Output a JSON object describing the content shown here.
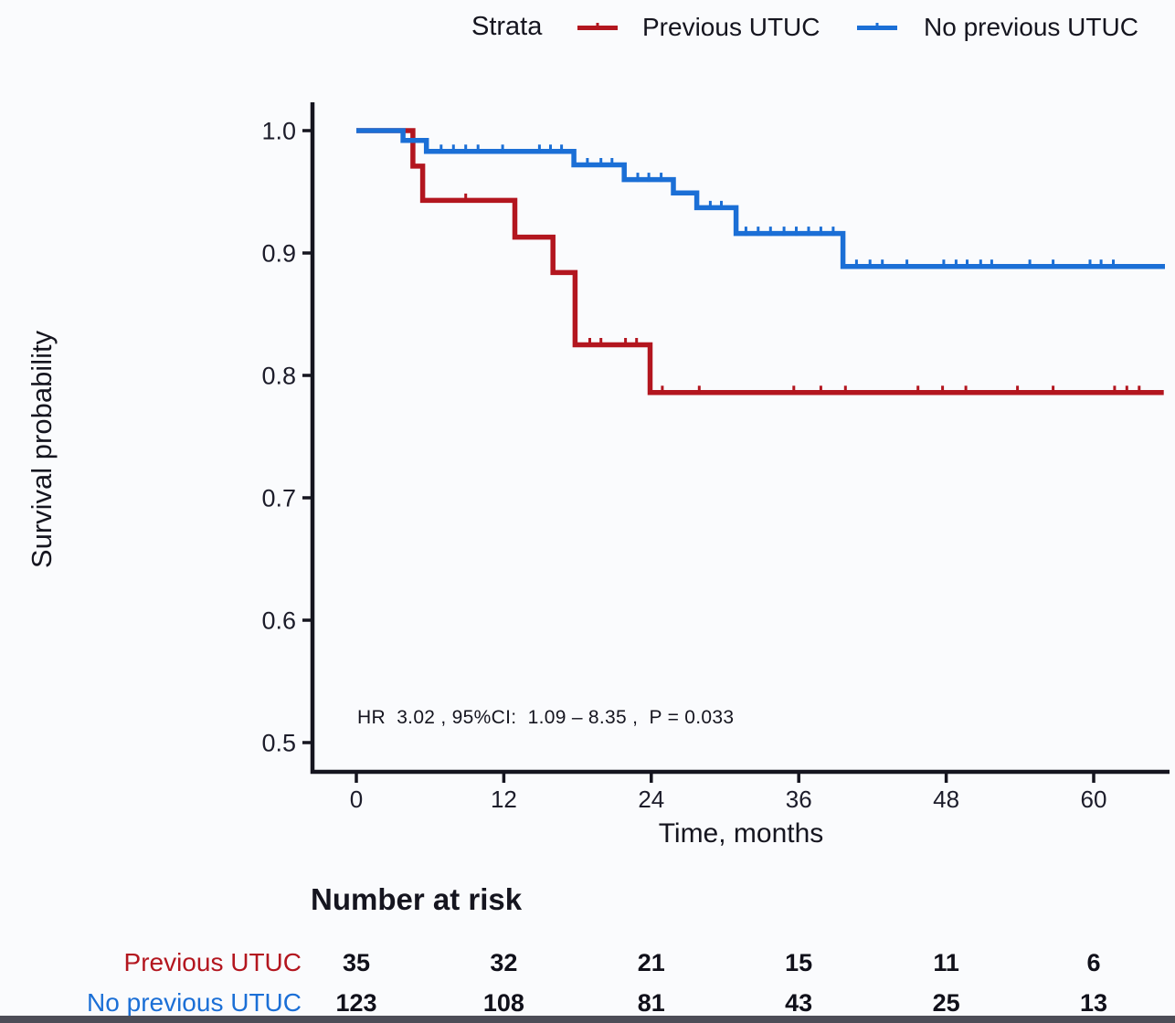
{
  "legend": {
    "title": "Strata",
    "items": [
      {
        "label": "Previous UTUC",
        "color": "#B3161F"
      },
      {
        "label": "No previous UTUC",
        "color": "#1B6FD6"
      }
    ]
  },
  "axes": {
    "y_title": "Survival probability",
    "x_title": "Time, months"
  },
  "annotation": "HR  3.02 , 95%CI:  1.09 – 8.35 ,  P = 0.033",
  "risk_table": {
    "title": "Number at risk",
    "time_points": [
      0,
      12,
      24,
      36,
      48,
      60
    ],
    "rows": [
      {
        "label": "Previous UTUC",
        "color": "#B3161F",
        "counts": [
          35,
          32,
          21,
          15,
          11,
          6
        ]
      },
      {
        "label": "No previous UTUC",
        "color": "#1B6FD6",
        "counts": [
          123,
          108,
          81,
          43,
          25,
          13
        ]
      }
    ]
  },
  "chart_data": {
    "type": "line",
    "subtype": "kaplan-meier-step-curves",
    "title": "",
    "xlabel": "Time, months",
    "ylabel": "Survival probability",
    "xlim": [
      0,
      66
    ],
    "ylim": [
      0.47,
      1.02
    ],
    "grid": false,
    "legend_position": "top",
    "x_ticks": [
      {
        "value": 0,
        "label": "0"
      },
      {
        "value": 12,
        "label": "12"
      },
      {
        "value": 24,
        "label": "24"
      },
      {
        "value": 36,
        "label": "36"
      },
      {
        "value": 48,
        "label": "48"
      },
      {
        "value": 60,
        "label": "60"
      }
    ],
    "y_ticks": [
      {
        "value": 1.0,
        "label": "1.0"
      },
      {
        "value": 0.9,
        "label": "0.9"
      },
      {
        "value": 0.8,
        "label": "0.8"
      },
      {
        "value": 0.7,
        "label": "0.7"
      },
      {
        "value": 0.6,
        "label": "0.6"
      },
      {
        "value": 0.5,
        "label": "0.5"
      }
    ],
    "series": [
      {
        "name": "Previous UTUC",
        "color": "#B3161F",
        "steps": [
          [
            0,
            1.0
          ],
          [
            4.6,
            0.971
          ],
          [
            5.4,
            0.943
          ],
          [
            12.9,
            0.913
          ],
          [
            16.0,
            0.884
          ],
          [
            17.8,
            0.825
          ],
          [
            23.9,
            0.786
          ]
        ],
        "end_time": 65.7,
        "censor_times": [
          8.9,
          19.0,
          19.9,
          21.9,
          22.8,
          24.9,
          27.9,
          35.6,
          37.8,
          39.8,
          45.7,
          47.7,
          49.6,
          53.8,
          56.7,
          61.7,
          62.7,
          63.7
        ]
      },
      {
        "name": "No previous UTUC",
        "color": "#1B6FD6",
        "steps": [
          [
            0,
            1.0
          ],
          [
            3.8,
            0.992
          ],
          [
            5.7,
            0.983
          ],
          [
            17.7,
            0.972
          ],
          [
            21.8,
            0.96
          ],
          [
            25.8,
            0.949
          ],
          [
            27.7,
            0.937
          ],
          [
            30.9,
            0.916
          ],
          [
            39.6,
            0.889
          ]
        ],
        "end_time": 65.8,
        "censor_times": [
          6.9,
          7.9,
          8.9,
          9.9,
          11.9,
          14.9,
          15.8,
          16.7,
          18.8,
          19.9,
          20.8,
          22.9,
          23.8,
          24.8,
          28.8,
          29.7,
          31.7,
          32.7,
          33.7,
          34.8,
          35.8,
          36.8,
          37.8,
          38.8,
          40.7,
          41.8,
          42.8,
          44.8,
          47.8,
          48.8,
          49.7,
          50.8,
          51.7,
          54.8,
          56.7,
          59.7,
          60.6,
          61.6
        ]
      }
    ],
    "hr_text": "HR  3.02 , 95%CI:  1.09 – 8.35 ,  P = 0.033"
  },
  "colors": {
    "axis": "#15151f",
    "tick_label": "#1c1c2a",
    "background": "#fafbfd",
    "bottom_bar": "#4d4d57"
  }
}
